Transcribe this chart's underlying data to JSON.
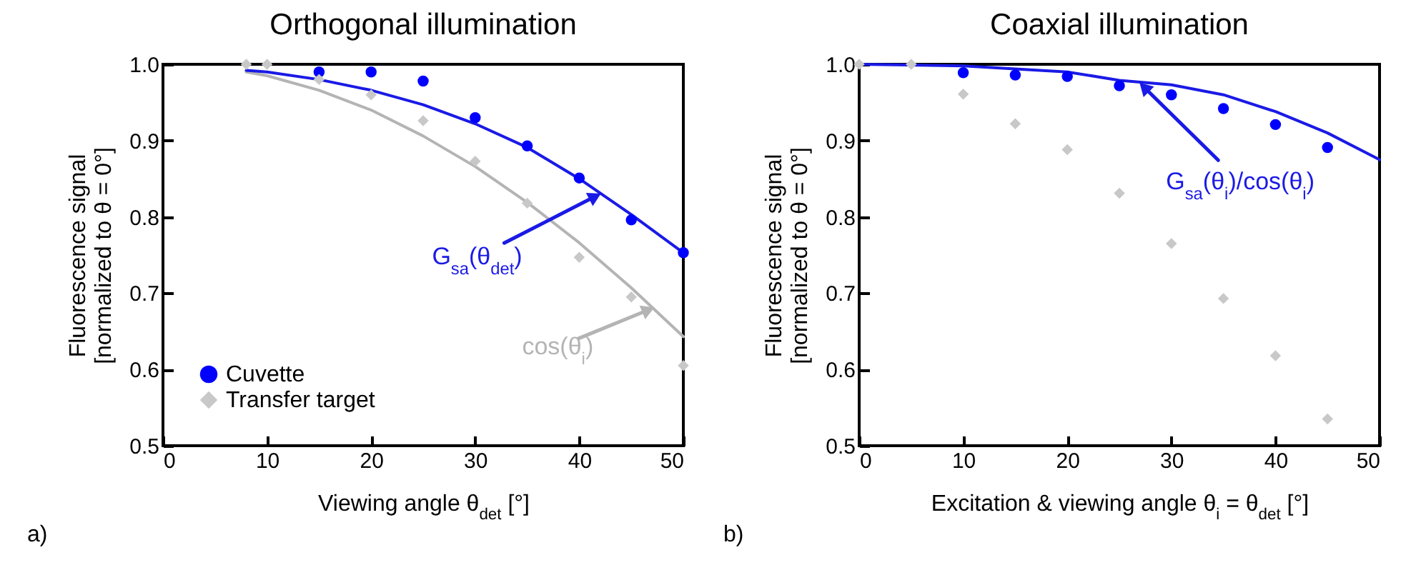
{
  "chart_data": [
    {
      "type": "scatter",
      "title": "Orthogonal illumination",
      "xlabel": "Viewing angle θ$_{det}$ [°]",
      "ylabel": "Fluorescence signal\n[normalized to θ = 0°]",
      "xlim": [
        0,
        50
      ],
      "xticks": [
        0,
        10,
        20,
        30,
        40,
        50
      ],
      "ylim": [
        0.5,
        1.0
      ],
      "yticks": [
        {
          "value": 0.5,
          "label": "0.5"
        },
        {
          "value": 0.6,
          "label": "0.6"
        },
        {
          "value": 0.7,
          "label": "0.7"
        },
        {
          "value": 0.8,
          "label": "0.8"
        },
        {
          "value": 0.9,
          "label": "0.9"
        },
        {
          "value": 1.0,
          "label": "1.0"
        }
      ],
      "legend": "bottom left",
      "grid": false,
      "series": [
        {
          "type": "line",
          "color": "#b4b4b4",
          "x": [
            8,
            10,
            15,
            20,
            25,
            30,
            35,
            40,
            45,
            50
          ],
          "values": [
            0.99,
            0.985,
            0.966,
            0.94,
            0.906,
            0.866,
            0.819,
            0.766,
            0.707,
            0.643
          ]
        },
        {
          "type": "line",
          "color": "#1a1ae6",
          "x": [
            8,
            10,
            15,
            20,
            25,
            30,
            35,
            40,
            45,
            50
          ],
          "values": [
            0.992,
            0.99,
            0.98,
            0.966,
            0.947,
            0.922,
            0.891,
            0.85,
            0.803,
            0.753
          ]
        },
        {
          "name": "Cuvette",
          "marker": "circle",
          "color": "#0000ff",
          "x": [
            15,
            20,
            25,
            30,
            35,
            40,
            45,
            50
          ],
          "values": [
            0.99,
            0.99,
            0.978,
            0.93,
            0.893,
            0.851,
            0.796,
            0.753
          ]
        },
        {
          "name": "Transfer target",
          "marker": "diamond",
          "color": "#c8c8c8",
          "x": [
            8,
            10,
            15,
            20,
            25,
            30,
            35,
            40,
            45,
            50
          ],
          "values": [
            1.0,
            1.0,
            0.98,
            0.96,
            0.926,
            0.873,
            0.818,
            0.747,
            0.695,
            0.605
          ]
        }
      ],
      "annotations": [
        "a)",
        {
          "text": "G$_{sa}$(θ$_{det}$)",
          "x": 42,
          "y": 0.83
        },
        {
          "text": "cos(θ$_{i}$)",
          "x": 47,
          "y": 0.68
        }
      ]
    },
    {
      "type": "scatter",
      "title": "Coaxial illumination",
      "xlabel": "Excitation & viewing angle θ$_{i}$ = θ$_{det}$ [°]",
      "ylabel": "Fluorescence signal\n[normalized to θ = 0°]",
      "xlim": [
        0,
        50
      ],
      "xticks": [
        0,
        10,
        20,
        30,
        40,
        50
      ],
      "ylim": [
        0.5,
        1.0
      ],
      "yticks": [
        {
          "value": 0.5,
          "label": "0.5"
        },
        {
          "value": 0.6,
          "label": "0.6"
        },
        {
          "value": 0.7,
          "label": "0.7"
        },
        {
          "value": 0.8,
          "label": "0.8"
        },
        {
          "value": 0.9,
          "label": "0.9"
        },
        {
          "value": 1.0,
          "label": "1.0"
        }
      ],
      "legend": "bottom left",
      "grid": false,
      "series": [
        {
          "type": "line",
          "color": "#1a1ae6",
          "x": [
            0,
            10,
            20,
            25,
            30,
            35,
            40,
            45,
            50
          ],
          "values": [
            1.0,
            0.998,
            0.99,
            0.979,
            0.973,
            0.96,
            0.938,
            0.91,
            0.875
          ]
        },
        {
          "name": "Cuvette",
          "marker": "circle",
          "color": "#0000ff",
          "x": [
            10,
            15,
            20,
            25,
            30,
            35,
            40,
            45
          ],
          "values": [
            0.989,
            0.986,
            0.984,
            0.972,
            0.96,
            0.942,
            0.921,
            0.891
          ]
        },
        {
          "name": "Transfer target",
          "marker": "diamond",
          "color": "#c8c8c8",
          "x": [
            0,
            5,
            10,
            15,
            20,
            25,
            30,
            35,
            40,
            45
          ],
          "values": [
            1.0,
            1.0,
            0.961,
            0.922,
            0.888,
            0.831,
            0.765,
            0.693,
            0.618,
            0.535
          ]
        }
      ],
      "annotations": [
        "b)",
        {
          "text": "G$_{sa}$(θ$_{i}$)/cos(θ$_{i}$)",
          "x": 27,
          "y": 0.975
        }
      ]
    }
  ]
}
